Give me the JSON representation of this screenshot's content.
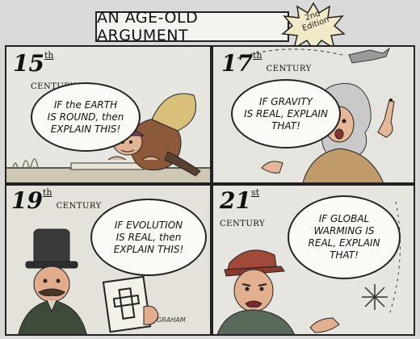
{
  "title": "AN AGE-OLD ARGUMENT",
  "edition": "2nd Edition",
  "panels": [
    {
      "number": "15",
      "suffix": "th",
      "label": "CENTURY",
      "speech": "IF the EARTH\nIS ROUND, then\nEXPLAIN THIS!"
    },
    {
      "number": "17",
      "suffix": "th",
      "label": "CENTURY",
      "speech": "IF GRAVITY\nIS REAL, EXPLAIN\nTHAT!"
    },
    {
      "number": "19",
      "suffix": "th",
      "label": "CENTURY",
      "speech": "IF EVOLUTION\nIS REAL, then\nEXPLAIN THIS!"
    },
    {
      "number": "21",
      "suffix": "st",
      "label": "CENTURY",
      "speech": "IF GLOBAL\nWARMING IS\nREAL, EXPLAIN\nTHAT!"
    }
  ],
  "signature": "GRAHAM",
  "colors": {
    "panel_bg": "#e7e5e0",
    "ink": "#222222",
    "bubble": "#fbfaf7"
  }
}
